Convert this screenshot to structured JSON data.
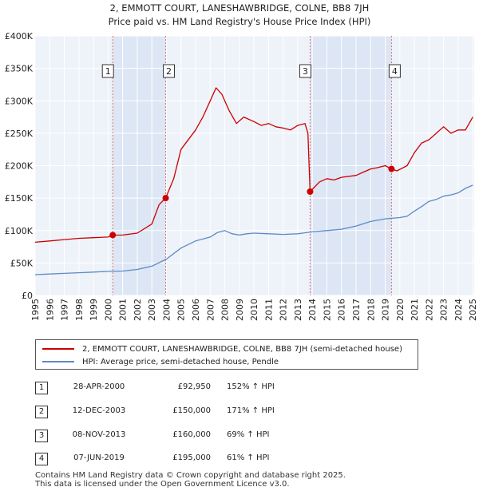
{
  "title": [
    "2, EMMOTT COURT, LANESHAWBRIDGE, COLNE, BB8 7JH",
    "Price paid vs. HM Land Registry's House Price Index (HPI)"
  ],
  "chart_data": {
    "type": "line",
    "title": "2, EMMOTT COURT, LANESHAWBRIDGE, COLNE, BB8 7JH — Price paid vs. HM Land Registry's House Price Index (HPI)",
    "xlabel": "",
    "ylabel": "",
    "xlim": [
      1995,
      2025.1
    ],
    "ylim": [
      0,
      400000
    ],
    "grid": true,
    "y_ticks": [
      0,
      50000,
      100000,
      150000,
      200000,
      250000,
      300000,
      350000,
      400000
    ],
    "y_tick_labels": [
      "£0",
      "£50K",
      "£100K",
      "£150K",
      "£200K",
      "£250K",
      "£300K",
      "£350K",
      "£400K"
    ],
    "x_ticks": [
      1995,
      1996,
      1997,
      1998,
      1999,
      2000,
      2001,
      2002,
      2003,
      2004,
      2005,
      2006,
      2007,
      2008,
      2009,
      2010,
      2011,
      2012,
      2013,
      2014,
      2015,
      2016,
      2017,
      2018,
      2019,
      2020,
      2021,
      2022,
      2023,
      2024,
      2025
    ],
    "x_tick_labels": [
      "1995",
      "1996",
      "1997",
      "1998",
      "1999",
      "2000",
      "2001",
      "2002",
      "2003",
      "2004",
      "2005",
      "2006",
      "2007",
      "2008",
      "2009",
      "2010",
      "2011",
      "2012",
      "2013",
      "2014",
      "2015",
      "2016",
      "2017",
      "2018",
      "2019",
      "2020",
      "2021",
      "2022",
      "2023",
      "2024",
      "2025"
    ],
    "legend_position": "below",
    "series": [
      {
        "name": "2, EMMOTT COURT, LANESHAWBRIDGE, COLNE, BB8 7JH (semi-detached house)",
        "color": "#cc0000",
        "x": [
          1995.0,
          1996.0,
          1997.0,
          1998.0,
          1999.0,
          2000.0,
          2000.32,
          2001.0,
          2002.0,
          2003.0,
          2003.5,
          2003.95,
          2004.5,
          2005.0,
          2006.0,
          2006.5,
          2007.0,
          2007.4,
          2007.8,
          2008.3,
          2008.8,
          2009.3,
          2010.0,
          2010.5,
          2011.0,
          2011.5,
          2012.0,
          2012.5,
          2013.0,
          2013.5,
          2013.7,
          2013.85,
          2014.5,
          2015.0,
          2015.5,
          2016.0,
          2017.0,
          2017.5,
          2018.0,
          2018.5,
          2019.0,
          2019.43,
          2019.8,
          2020.5,
          2021.0,
          2021.5,
          2022.0,
          2022.5,
          2023.0,
          2023.5,
          2024.0,
          2024.5,
          2025.0
        ],
        "values": [
          82000,
          84000,
          86000,
          88000,
          89000,
          90000,
          92950,
          93000,
          96000,
          110000,
          140000,
          150000,
          180000,
          225000,
          255000,
          275000,
          300000,
          320000,
          310000,
          285000,
          265000,
          275000,
          268000,
          262000,
          265000,
          260000,
          258000,
          255000,
          262000,
          265000,
          250000,
          160000,
          175000,
          180000,
          178000,
          182000,
          185000,
          190000,
          195000,
          197000,
          200000,
          195000,
          192000,
          200000,
          220000,
          235000,
          240000,
          250000,
          260000,
          250000,
          255000,
          255000,
          275000
        ]
      },
      {
        "name": "HPI: Average price, semi-detached house, Pendle",
        "color": "#5b8ac7",
        "x": [
          1995.0,
          1996.0,
          1997.0,
          1998.0,
          1999.0,
          2000.0,
          2001.0,
          2002.0,
          2003.0,
          2004.0,
          2005.0,
          2006.0,
          2007.0,
          2007.5,
          2008.0,
          2008.5,
          2009.0,
          2009.5,
          2010.0,
          2011.0,
          2012.0,
          2013.0,
          2014.0,
          2015.0,
          2016.0,
          2017.0,
          2018.0,
          2019.0,
          2020.0,
          2020.5,
          2021.0,
          2021.5,
          2022.0,
          2022.5,
          2023.0,
          2023.5,
          2024.0,
          2024.5,
          2025.0
        ],
        "values": [
          32000,
          33000,
          34000,
          35000,
          36000,
          37000,
          37500,
          40000,
          45000,
          56000,
          73000,
          84000,
          90000,
          97000,
          100000,
          95000,
          93000,
          95000,
          96000,
          95000,
          94000,
          95000,
          98000,
          100000,
          102000,
          107000,
          114000,
          118000,
          120000,
          122000,
          130000,
          137000,
          145000,
          148000,
          153000,
          155000,
          158000,
          165000,
          170000
        ]
      }
    ],
    "transactions": [
      {
        "num": "1",
        "year": 2000.32,
        "value": 92950
      },
      {
        "num": "2",
        "year": 2003.95,
        "value": 150000
      },
      {
        "num": "3",
        "year": 2013.85,
        "value": 160000
      },
      {
        "num": "4",
        "year": 2019.43,
        "value": 195000
      }
    ],
    "shaded_ranges": [
      [
        2000.32,
        2003.95
      ],
      [
        2013.85,
        2019.43
      ]
    ]
  },
  "legend": {
    "items": [
      {
        "label": "2, EMMOTT COURT, LANESHAWBRIDGE, COLNE, BB8 7JH (semi-detached house)",
        "color": "#cc0000"
      },
      {
        "label": "HPI: Average price, semi-detached house, Pendle",
        "color": "#5b8ac7"
      }
    ]
  },
  "table": {
    "rows": [
      {
        "num": "1",
        "date": "28-APR-2000",
        "price": "£92,950",
        "hpi": "152% ↑ HPI"
      },
      {
        "num": "2",
        "date": "12-DEC-2003",
        "price": "£150,000",
        "hpi": "171% ↑ HPI"
      },
      {
        "num": "3",
        "date": "08-NOV-2013",
        "price": "£160,000",
        "hpi": "69% ↑ HPI"
      },
      {
        "num": "4",
        "date": "07-JUN-2019",
        "price": "£195,000",
        "hpi": "61% ↑ HPI"
      }
    ]
  },
  "footer": [
    "Contains HM Land Registry data © Crown copyright and database right 2025.",
    "This data is licensed under the Open Government Licence v3.0."
  ]
}
